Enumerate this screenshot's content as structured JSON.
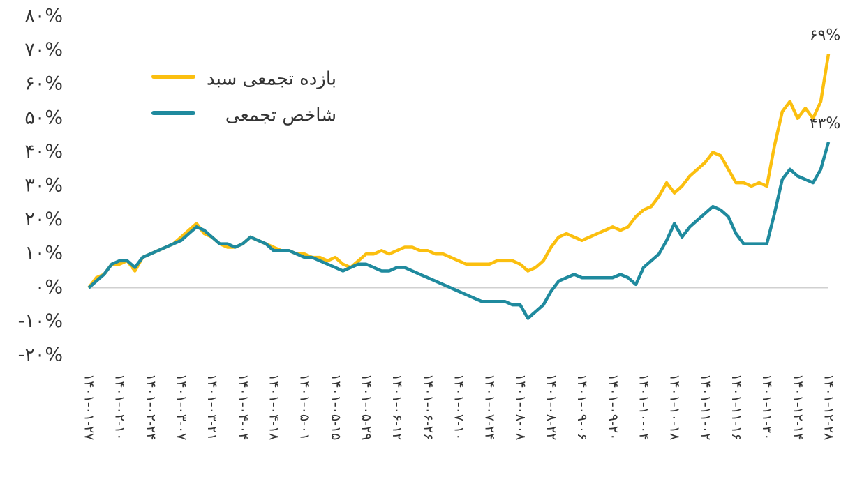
{
  "chart_data": {
    "type": "line",
    "categories": [
      "۱۴۰۱-۰۱-۲۷",
      null,
      null,
      null,
      "۱۴۰۱-۰۲-۱۰",
      null,
      null,
      null,
      "۱۴۰۱-۰۲-۲۴",
      null,
      null,
      null,
      "۱۴۰۱-۰۳-۰۷",
      null,
      null,
      null,
      "۱۴۰۱-۰۳-۲۱",
      null,
      null,
      null,
      "۱۴۰۱-۰۴-۰۴",
      null,
      null,
      null,
      "۱۴۰۱-۰۴-۱۸",
      null,
      null,
      null,
      "۱۴۰۱-۰۵-۰۱",
      null,
      null,
      null,
      "۱۴۰۱-۰۵-۱۵",
      null,
      null,
      null,
      "۱۴۰۱-۰۵-۲۹",
      null,
      null,
      null,
      "۱۴۰۱-۰۶-۱۲",
      null,
      null,
      null,
      "۱۴۰۱-۰۶-۲۶",
      null,
      null,
      null,
      "۱۴۰۱-۰۷-۱۰",
      null,
      null,
      null,
      "۱۴۰۱-۰۷-۲۴",
      null,
      null,
      null,
      "۱۴۰۱-۰۸-۰۸",
      null,
      null,
      null,
      "۱۴۰۱-۰۸-۲۲",
      null,
      null,
      null,
      "۱۴۰۱-۰۹-۰۶",
      null,
      null,
      null,
      "۱۴۰۱-۰۹-۲۰",
      null,
      null,
      null,
      "۱۴۰۱-۱۰-۰۴",
      null,
      null,
      null,
      "۱۴۰۱-۱۰-۱۸",
      null,
      null,
      null,
      "۱۴۰۱-۱۱-۰۲",
      null,
      null,
      null,
      "۱۴۰۱-۱۱-۱۶",
      null,
      null,
      null,
      "۱۴۰۱-۱۱-۳۰",
      null,
      null,
      null,
      "۱۴۰۱-۱۲-۱۴",
      null,
      null,
      null,
      "۱۴۰۱-۱۲-۲۸"
    ],
    "series": [
      {
        "name": "بازده تجمعی سبد",
        "color": "#fbbf0f",
        "end_label": "۶۹%",
        "values": [
          0,
          3,
          4,
          7,
          7,
          8,
          5,
          9,
          10,
          11,
          12,
          13,
          15,
          17,
          19,
          16,
          15,
          13,
          12,
          12,
          13,
          15,
          14,
          13,
          12,
          11,
          11,
          10,
          10,
          9,
          9,
          8,
          9,
          7,
          6,
          8,
          10,
          10,
          11,
          10,
          11,
          12,
          12,
          11,
          11,
          10,
          10,
          9,
          8,
          7,
          7,
          7,
          7,
          8,
          8,
          8,
          7,
          5,
          6,
          8,
          12,
          15,
          16,
          15,
          14,
          15,
          16,
          17,
          18,
          17,
          18,
          21,
          23,
          24,
          27,
          31,
          28,
          30,
          33,
          35,
          37,
          40,
          39,
          35,
          31,
          31,
          30,
          31,
          30,
          42,
          52,
          55,
          50,
          53,
          50,
          55,
          69
        ]
      },
      {
        "name": "شاخص تجمعی",
        "color": "#1f8a9e",
        "end_label": "۴۳%",
        "values": [
          0,
          2,
          4,
          7,
          8,
          8,
          6,
          9,
          10,
          11,
          12,
          13,
          14,
          16,
          18,
          17,
          15,
          13,
          13,
          12,
          13,
          15,
          14,
          13,
          11,
          11,
          11,
          10,
          9,
          9,
          8,
          7,
          6,
          5,
          6,
          7,
          7,
          6,
          5,
          5,
          6,
          6,
          5,
          4,
          3,
          2,
          1,
          0,
          -1,
          -2,
          -3,
          -4,
          -4,
          -4,
          -4,
          -5,
          -5,
          -9,
          -7,
          -5,
          -1,
          2,
          3,
          4,
          3,
          3,
          3,
          3,
          3,
          4,
          3,
          1,
          6,
          8,
          10,
          14,
          19,
          15,
          18,
          20,
          22,
          24,
          23,
          21,
          16,
          13,
          13,
          13,
          13,
          22,
          32,
          35,
          33,
          32,
          31,
          35,
          43
        ]
      }
    ],
    "ylim": [
      -20,
      80
    ],
    "yticks": [
      {
        "value": -20,
        "label": "-۲۰%"
      },
      {
        "value": -10,
        "label": "-۱۰%"
      },
      {
        "value": 0,
        "label": "۰%"
      },
      {
        "value": 10,
        "label": "۱۰%"
      },
      {
        "value": 20,
        "label": "۲۰%"
      },
      {
        "value": 30,
        "label": "۳۰%"
      },
      {
        "value": 40,
        "label": "۴۰%"
      },
      {
        "value": 50,
        "label": "۵۰%"
      },
      {
        "value": 60,
        "label": "۶۰%"
      },
      {
        "value": 70,
        "label": "۷۰%"
      },
      {
        "value": 80,
        "label": "۸۰%"
      }
    ],
    "grid": false,
    "legend": "upper left"
  }
}
